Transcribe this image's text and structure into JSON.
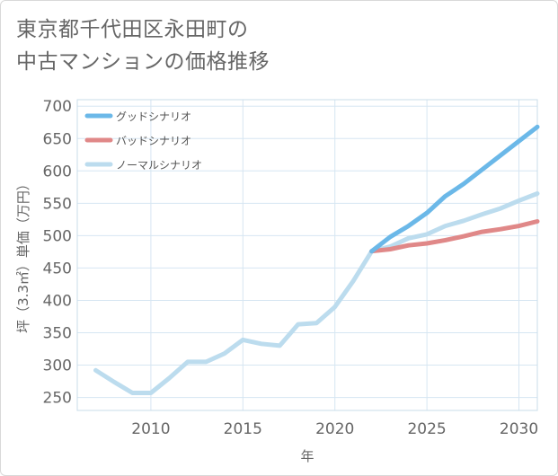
{
  "title": {
    "line1": "東京都千代田区永田町の",
    "line2": "中古マンションの価格推移"
  },
  "chart_data": {
    "type": "line",
    "title": "東京都千代田区永田町の中古マンションの価格推移",
    "xlabel": "年",
    "ylabel": "坪（3.3㎡）単価（万円）",
    "xlim": [
      2006,
      2031
    ],
    "ylim": [
      230,
      710
    ],
    "xticks": [
      2010,
      2015,
      2020,
      2025,
      2030
    ],
    "yticks": [
      250,
      300,
      350,
      400,
      450,
      500,
      550,
      600,
      650,
      700
    ],
    "grid": true,
    "legend_position": "top-left",
    "series": [
      {
        "name": "グッドシナリオ",
        "color": "#6bb8e8",
        "x": [
          2022,
          2023,
          2024,
          2025,
          2026,
          2027,
          2028,
          2029,
          2030,
          2031
        ],
        "values": [
          476,
          498,
          515,
          535,
          561,
          580,
          602,
          624,
          646,
          668
        ]
      },
      {
        "name": "バッドシナリオ",
        "color": "#e08888",
        "x": [
          2022,
          2023,
          2024,
          2025,
          2026,
          2027,
          2028,
          2029,
          2030,
          2031
        ],
        "values": [
          476,
          479,
          485,
          488,
          493,
          499,
          506,
          510,
          515,
          522
        ]
      },
      {
        "name": "ノーマルシナリオ",
        "color": "#bcdcee",
        "x": [
          2007,
          2008,
          2009,
          2010,
          2011,
          2012,
          2013,
          2014,
          2015,
          2016,
          2017,
          2018,
          2019,
          2020,
          2021,
          2022,
          2023,
          2024,
          2025,
          2026,
          2027,
          2028,
          2029,
          2030,
          2031
        ],
        "values": [
          292,
          274,
          257,
          257,
          280,
          305,
          305,
          318,
          339,
          333,
          330,
          363,
          365,
          390,
          430,
          476,
          483,
          496,
          502,
          515,
          523,
          533,
          542,
          554,
          565
        ]
      }
    ]
  }
}
